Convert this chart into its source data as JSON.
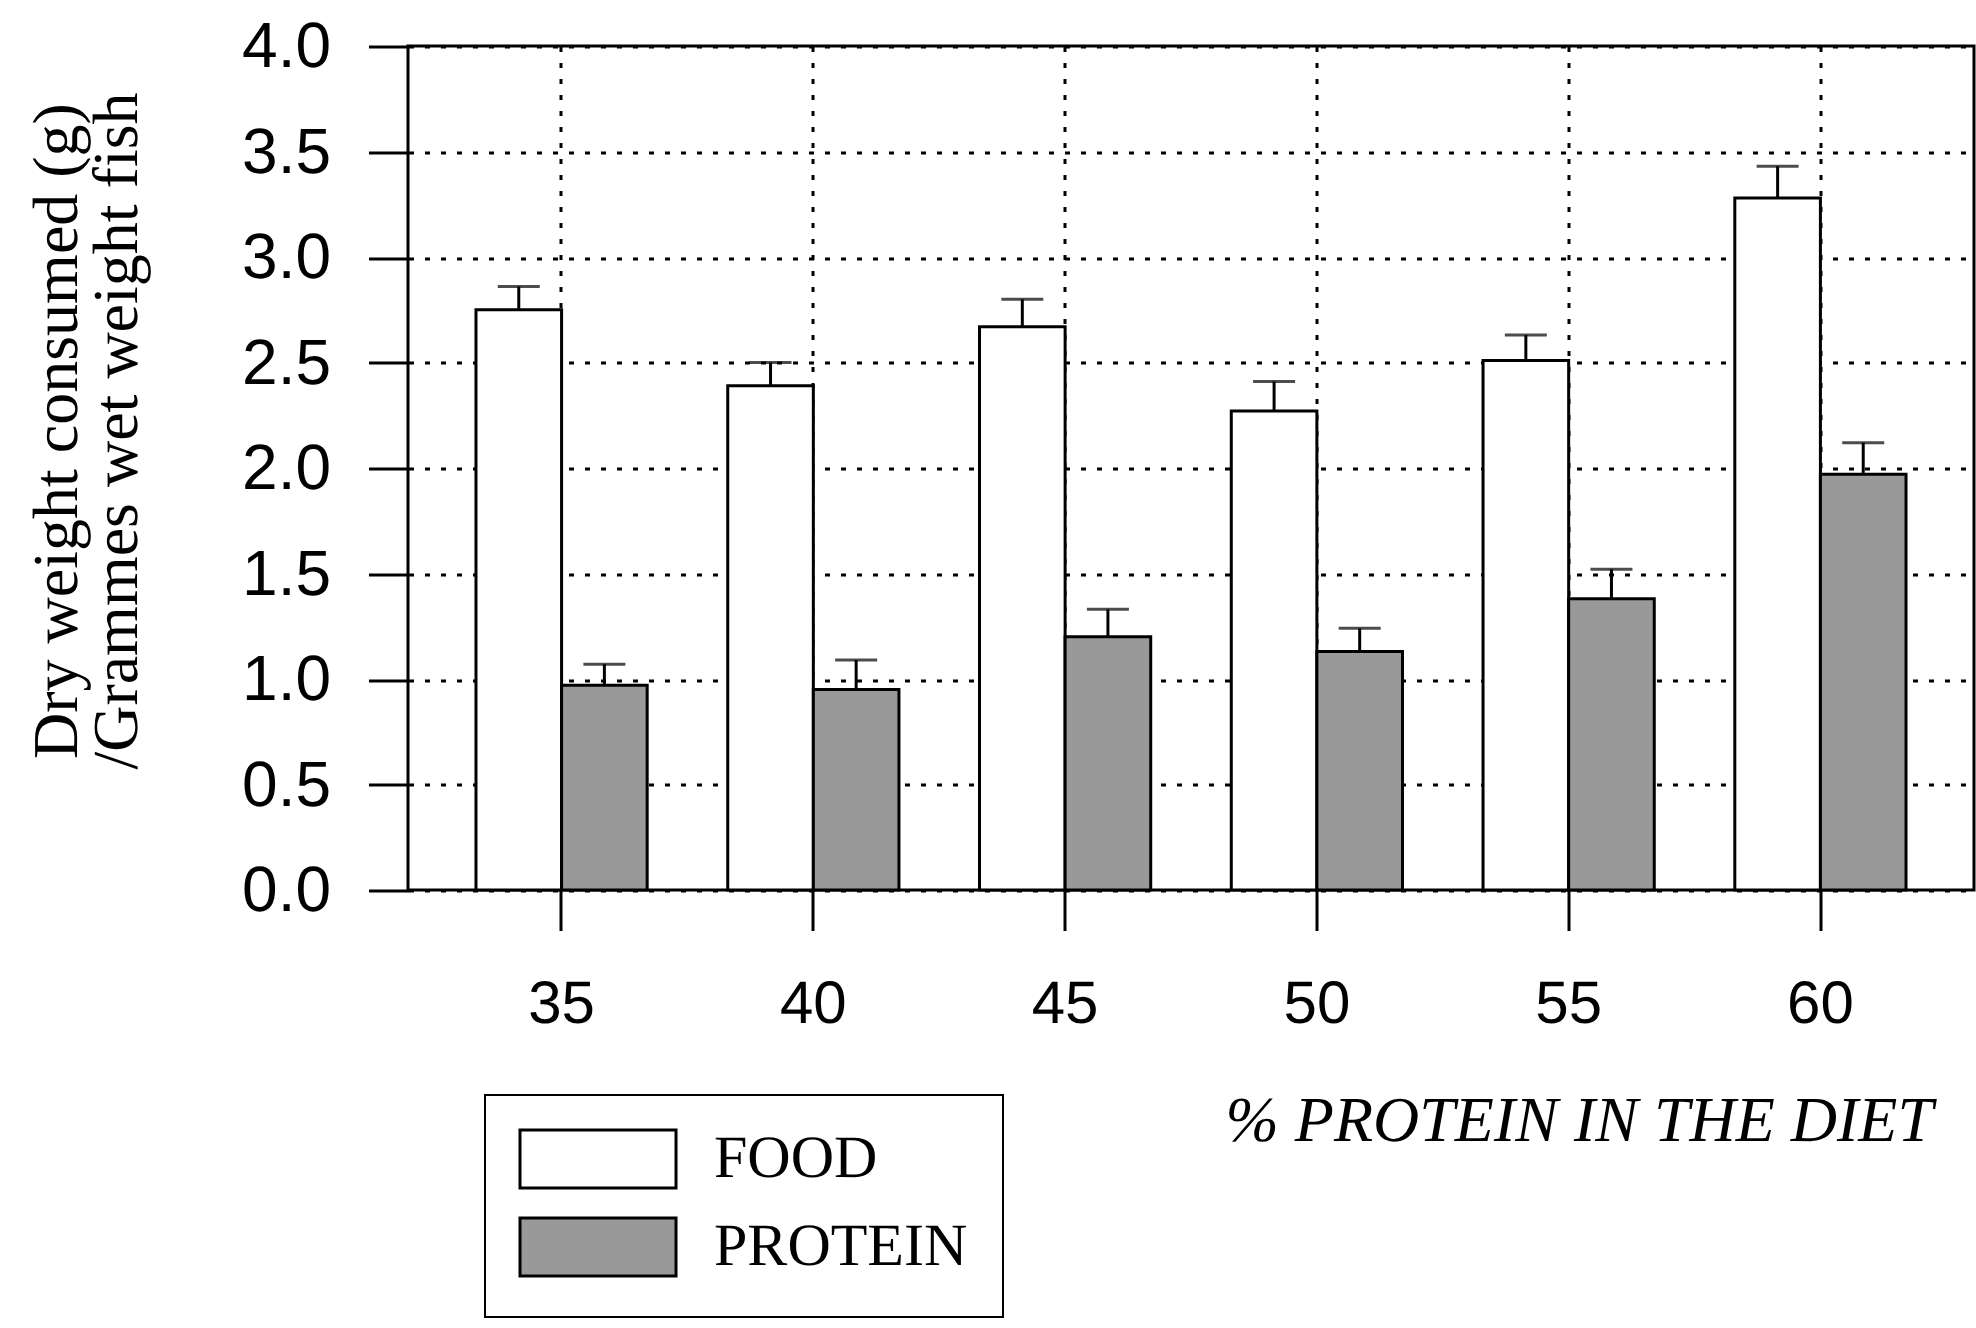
{
  "chart_data": {
    "type": "bar",
    "xlabel": "% PROTEIN IN THE DIET",
    "ylabel": "Dry weight consumed (g)\n/Grammes wet weight fish",
    "categories": [
      "35",
      "40",
      "45",
      "50",
      "55",
      "60"
    ],
    "series": [
      {
        "name": "FOOD",
        "color": "#ffffff",
        "values": [
          2.75,
          2.39,
          2.67,
          2.27,
          2.51,
          3.28
        ],
        "errors": [
          [
            2.75,
            2.86
          ],
          [
            2.39,
            2.5
          ],
          [
            2.67,
            2.8
          ],
          [
            2.27,
            2.41
          ],
          [
            2.51,
            2.63
          ],
          [
            3.28,
            3.43
          ]
        ]
      },
      {
        "name": "PROTEIN",
        "color": "#999999",
        "values": [
          0.97,
          0.95,
          1.2,
          1.13,
          1.38,
          1.97
        ],
        "errors": [
          [
            0.97,
            1.07
          ],
          [
            0.95,
            1.09
          ],
          [
            1.2,
            1.33
          ],
          [
            1.13,
            1.24
          ],
          [
            1.38,
            1.52
          ],
          [
            1.97,
            2.12
          ]
        ]
      }
    ],
    "ylim": [
      0,
      4
    ],
    "yticks": [
      {
        "value": 0,
        "label": "0.0"
      },
      0.5,
      {
        "value": 1,
        "label": "1.0"
      },
      1.5,
      {
        "value": 2,
        "label": "2.0"
      },
      2.5,
      {
        "value": 3,
        "label": "3.0"
      },
      3.5,
      {
        "value": 4,
        "label": "4.0"
      }
    ],
    "grid": true,
    "legend": "bottom left"
  }
}
